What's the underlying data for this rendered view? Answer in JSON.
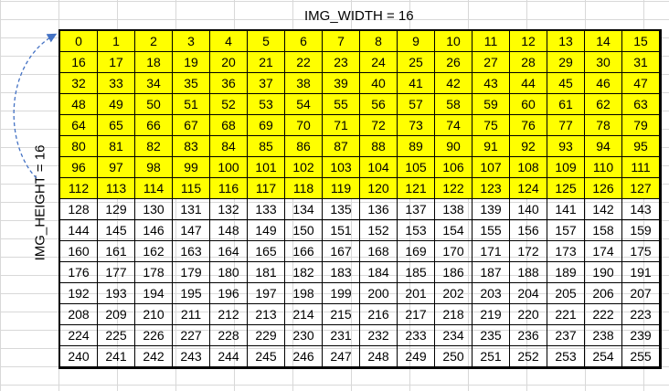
{
  "labels": {
    "width": "IMG_WIDTH = 16",
    "height": "IMG_HEIGHT = 16"
  },
  "grid": {
    "cols": 16,
    "rows": 16,
    "highlight_rows": 8,
    "values": [
      [
        0,
        1,
        2,
        3,
        4,
        5,
        6,
        7,
        8,
        9,
        10,
        11,
        12,
        13,
        14,
        15
      ],
      [
        16,
        17,
        18,
        19,
        20,
        21,
        22,
        23,
        24,
        25,
        26,
        27,
        28,
        29,
        30,
        31
      ],
      [
        32,
        33,
        34,
        35,
        36,
        37,
        38,
        39,
        40,
        41,
        42,
        43,
        44,
        45,
        46,
        47
      ],
      [
        48,
        49,
        50,
        51,
        52,
        53,
        54,
        55,
        56,
        57,
        58,
        59,
        60,
        61,
        62,
        63
      ],
      [
        64,
        65,
        66,
        67,
        68,
        69,
        70,
        71,
        72,
        73,
        74,
        75,
        76,
        77,
        78,
        79
      ],
      [
        80,
        81,
        82,
        83,
        84,
        85,
        86,
        87,
        88,
        89,
        90,
        91,
        92,
        93,
        94,
        95
      ],
      [
        96,
        97,
        98,
        99,
        100,
        101,
        102,
        103,
        104,
        105,
        106,
        107,
        108,
        109,
        110,
        111
      ],
      [
        112,
        113,
        114,
        115,
        116,
        117,
        118,
        119,
        120,
        121,
        122,
        123,
        124,
        125,
        126,
        127
      ],
      [
        128,
        129,
        130,
        131,
        132,
        133,
        134,
        135,
        136,
        137,
        138,
        139,
        140,
        141,
        142,
        143
      ],
      [
        144,
        145,
        146,
        147,
        148,
        149,
        150,
        151,
        152,
        153,
        154,
        155,
        156,
        157,
        158,
        159
      ],
      [
        160,
        161,
        162,
        163,
        164,
        165,
        166,
        167,
        168,
        169,
        170,
        171,
        172,
        173,
        174,
        175
      ],
      [
        176,
        177,
        178,
        179,
        180,
        181,
        182,
        183,
        184,
        185,
        186,
        187,
        188,
        189,
        190,
        191
      ],
      [
        192,
        193,
        194,
        195,
        196,
        197,
        198,
        199,
        200,
        201,
        202,
        203,
        204,
        205,
        206,
        207
      ],
      [
        208,
        209,
        210,
        211,
        212,
        213,
        214,
        215,
        216,
        217,
        218,
        219,
        220,
        221,
        222,
        223
      ],
      [
        224,
        225,
        226,
        227,
        228,
        229,
        230,
        231,
        232,
        233,
        234,
        235,
        236,
        237,
        238,
        239
      ],
      [
        240,
        241,
        242,
        243,
        244,
        245,
        246,
        247,
        248,
        249,
        250,
        251,
        252,
        253,
        254,
        255
      ]
    ]
  },
  "colors": {
    "highlight": "#ffff00",
    "arrow": "#4472c4",
    "gridlines": "#d8d8d8"
  }
}
